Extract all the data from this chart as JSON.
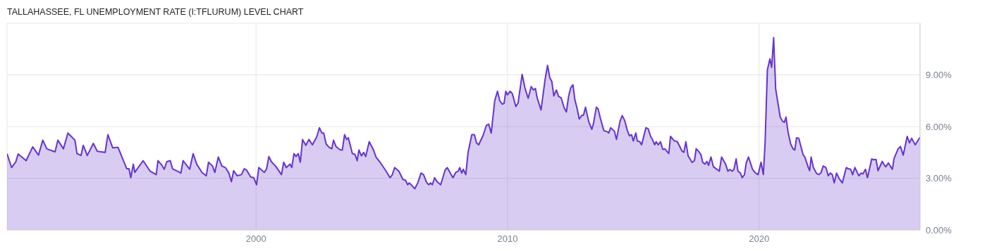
{
  "chart_data": {
    "type": "area",
    "title": "TALLAHASSEE, FL UNEMPLOYMENT RATE (I:TFLURUM) LEVEL CHART",
    "x": [
      1990.1,
      1990.28,
      1990.45,
      1990.54,
      1990.86,
      1991.12,
      1991.35,
      1991.52,
      1991.68,
      1992.01,
      1992.12,
      1992.34,
      1992.52,
      1992.8,
      1992.88,
      1993.04,
      1993.13,
      1993.29,
      1993.53,
      1993.69,
      1994.0,
      1994.11,
      1994.3,
      1994.51,
      1994.86,
      1994.95,
      1995.02,
      1995.12,
      1995.18,
      1995.51,
      1995.79,
      1996.03,
      1996.1,
      1996.26,
      1996.35,
      1996.45,
      1996.59,
      1996.68,
      1996.87,
      1997.01,
      1997.1,
      1997.24,
      1997.36,
      1997.5,
      1997.64,
      1997.85,
      1998.02,
      1998.11,
      1998.27,
      1998.36,
      1998.5,
      1998.64,
      1998.78,
      1998.92,
      1999.02,
      1999.11,
      1999.25,
      1999.42,
      1999.53,
      1999.62,
      1999.79,
      1999.91,
      2000.02,
      2000.11,
      2000.33,
      2000.42,
      2000.51,
      2000.61,
      2000.79,
      2001.01,
      2001.1,
      2001.2,
      2001.35,
      2001.42,
      2001.51,
      2001.59,
      2001.68,
      2001.76,
      2001.85,
      2001.98,
      2002.1,
      2002.24,
      2002.41,
      2002.52,
      2002.62,
      2002.69,
      2002.79,
      2002.9,
      2003.01,
      2003.08,
      2003.18,
      2003.35,
      2003.43,
      2003.52,
      2003.6,
      2003.67,
      2003.83,
      2003.93,
      2004.02,
      2004.09,
      2004.19,
      2004.28,
      2004.36,
      2004.5,
      2004.67,
      2004.77,
      2004.95,
      2005.14,
      2005.33,
      2005.42,
      2005.51,
      2005.68,
      2005.84,
      2005.94,
      2006.03,
      2006.09,
      2006.19,
      2006.31,
      2006.43,
      2006.56,
      2006.66,
      2006.78,
      2006.87,
      2006.94,
      2007.01,
      2007.1,
      2007.2,
      2007.34,
      2007.52,
      2007.6,
      2007.83,
      2007.94,
      2008.04,
      2008.1,
      2008.18,
      2008.24,
      2008.34,
      2008.43,
      2008.58,
      2008.68,
      2008.77,
      2008.85,
      2009.02,
      2009.16,
      2009.25,
      2009.35,
      2009.49,
      2009.6,
      2009.69,
      2009.79,
      2009.86,
      2009.93,
      2010.0,
      2010.1,
      2010.19,
      2010.33,
      2010.42,
      2010.58,
      2010.7,
      2010.82,
      2010.94,
      2011.03,
      2011.11,
      2011.17,
      2011.33,
      2011.5,
      2011.59,
      2011.68,
      2011.76,
      2011.84,
      2011.94,
      2012.03,
      2012.13,
      2012.25,
      2012.34,
      2012.43,
      2012.51,
      2012.6,
      2012.68,
      2012.76,
      2012.85,
      2012.95,
      2013.02,
      2013.1,
      2013.23,
      2013.35,
      2013.41,
      2013.53,
      2013.6,
      2013.69,
      2013.83,
      2013.97,
      2014.02,
      2014.1,
      2014.25,
      2014.33,
      2014.47,
      2014.56,
      2014.66,
      2014.77,
      2014.85,
      2014.93,
      2015.0,
      2015.1,
      2015.16,
      2015.26,
      2015.33,
      2015.5,
      2015.59,
      2015.69,
      2015.75,
      2015.85,
      2015.91,
      2015.99,
      2016.08,
      2016.17,
      2016.25,
      2016.41,
      2016.48,
      2016.62,
      2016.75,
      2016.94,
      2017.01,
      2017.09,
      2017.18,
      2017.34,
      2017.43,
      2017.5,
      2017.59,
      2017.69,
      2017.76,
      2017.85,
      2017.93,
      2017.99,
      2018.09,
      2018.18,
      2018.42,
      2018.51,
      2018.67,
      2018.76,
      2018.84,
      2018.93,
      2019.0,
      2019.09,
      2019.16,
      2019.26,
      2019.33,
      2019.42,
      2019.49,
      2019.58,
      2019.74,
      2019.86,
      2019.96,
      2020.08,
      2020.17,
      2020.24,
      2020.33,
      2020.43,
      2020.5,
      2020.58,
      2020.66,
      2020.84,
      2020.94,
      2021.01,
      2021.07,
      2021.16,
      2021.26,
      2021.35,
      2021.42,
      2021.49,
      2021.58,
      2021.75,
      2021.82,
      2021.96,
      2022.01,
      2022.07,
      2022.16,
      2022.29,
      2022.38,
      2022.47,
      2022.55,
      2022.66,
      2022.75,
      2022.83,
      2022.91,
      2022.99,
      2023.08,
      2023.19,
      2023.31,
      2023.47,
      2023.55,
      2023.64,
      2023.72,
      2023.81,
      2023.97,
      2024.06,
      2024.13,
      2024.23,
      2024.31,
      2024.48,
      2024.56,
      2024.65,
      2024.73,
      2024.9,
      2024.97,
      2025.04,
      2025.14,
      2025.3,
      2025.37,
      2025.53,
      2025.62,
      2025.73,
      2025.89,
      2025.98,
      2026.07,
      2026.12,
      2026.21,
      2026.4
    ],
    "series": [
      {
        "color": "#6633cc",
        "values": [
          4.43,
          3.62,
          3.96,
          4.41,
          4.02,
          4.82,
          4.34,
          5.21,
          4.71,
          4.53,
          5.21,
          4.71,
          5.62,
          5.21,
          4.43,
          4.32,
          4.91,
          4.32,
          5.02,
          4.56,
          4.5,
          5.53,
          4.77,
          4.8,
          3.55,
          3.55,
          3.03,
          3.82,
          3.34,
          4.02,
          3.41,
          3.21,
          4.02,
          3.75,
          3.52,
          3.96,
          4.02,
          3.55,
          3.41,
          3.3,
          4.02,
          3.75,
          3.52,
          4.43,
          3.82,
          3.34,
          3.14,
          3.93,
          3.71,
          3.34,
          4.23,
          3.71,
          3.62,
          3.3,
          2.8,
          3.44,
          3.14,
          3.21,
          3.55,
          3.48,
          3.07,
          3.03,
          2.62,
          3.62,
          3.34,
          3.55,
          4.26,
          3.96,
          3.68,
          3.21,
          3.93,
          3.62,
          3.82,
          3.62,
          4.43,
          4.26,
          4.43,
          3.93,
          5.25,
          4.91,
          5.25,
          4.94,
          5.39,
          5.93,
          5.62,
          5.62,
          4.98,
          4.8,
          4.71,
          5.21,
          4.84,
          4.64,
          4.64,
          5.53,
          5.25,
          5.35,
          4.43,
          4.39,
          4.02,
          4.64,
          4.3,
          4.5,
          4.26,
          5.12,
          4.64,
          4.23,
          3.89,
          3.48,
          3.03,
          3.21,
          3.62,
          3.41,
          2.93,
          2.89,
          2.62,
          2.73,
          2.59,
          2.39,
          2.73,
          3.3,
          3.21,
          2.76,
          2.62,
          2.73,
          2.62,
          3.03,
          2.8,
          2.62,
          3.48,
          3.62,
          3.03,
          3.34,
          3.41,
          3.62,
          3.3,
          3.52,
          3.21,
          4.5,
          5.53,
          5.53,
          5.05,
          4.94,
          5.46,
          6.07,
          6.14,
          5.62,
          7.5,
          8.05,
          7.5,
          7.3,
          7.34,
          8.05,
          7.84,
          8.05,
          7.91,
          7.16,
          7.37,
          9.03,
          8.19,
          7.64,
          8.32,
          8.12,
          8.21,
          7.71,
          6.96,
          8.8,
          9.55,
          8.83,
          8.62,
          7.78,
          8.12,
          7.75,
          7.67,
          7.09,
          6.85,
          7.78,
          8.25,
          8.43,
          7.53,
          7.09,
          6.44,
          6.64,
          6.66,
          7.12,
          6.28,
          5.84,
          6.14,
          7.12,
          7.03,
          6.48,
          5.76,
          5.7,
          5.62,
          5.93,
          5.73,
          5.25,
          6.3,
          6.64,
          6.34,
          5.73,
          5.46,
          5.53,
          5.16,
          5.62,
          5.16,
          5.12,
          4.94,
          5.93,
          5.87,
          5.43,
          5.28,
          4.94,
          5.12,
          4.94,
          5.12,
          4.67,
          4.71,
          4.43,
          5.43,
          5.18,
          5.12,
          4.57,
          4.5,
          5.12,
          4.3,
          3.92,
          4.02,
          4.71,
          4.57,
          4.37,
          3.92,
          3.82,
          3.98,
          3.75,
          4.23,
          3.68,
          3.41,
          4.23,
          3.82,
          3.41,
          3.51,
          3.41,
          3.51,
          4.12,
          3.41,
          3.3,
          3.03,
          3.21,
          3.89,
          4.23,
          3.52,
          3.3,
          3.21,
          3.93,
          3.21,
          5.05,
          9.28,
          9.93,
          9.44,
          11.16,
          8.19,
          6.55,
          6.3,
          6.25,
          6.55,
          5.62,
          4.98,
          4.71,
          4.64,
          5.35,
          5.32,
          4.37,
          4.23,
          3.62,
          3.44,
          4.23,
          3.62,
          3.27,
          3.21,
          3.34,
          3.71,
          3.62,
          3.14,
          3.3,
          3.21,
          2.73,
          3.3,
          2.97,
          2.73,
          3.62,
          3.55,
          3.52,
          3.21,
          3.62,
          3.14,
          3.3,
          3.25,
          3.52,
          3.03,
          4.12,
          4.07,
          4.09,
          3.44,
          3.98,
          3.79,
          3.66,
          3.89,
          3.52,
          4.16,
          4.71,
          4.84,
          4.34,
          5.43,
          5.05,
          5.32,
          5.18,
          4.94,
          5.39
        ]
      }
    ],
    "xlim": [
      1990.1,
      2026.4
    ],
    "xticks": [
      2000,
      2010,
      2020
    ],
    "ylim": [
      0,
      12
    ],
    "yticks": [
      {
        "value": 0,
        "label": "0.00%"
      },
      {
        "value": 3,
        "label": "3.00%"
      },
      {
        "value": 6,
        "label": "6.00%"
      },
      {
        "value": 9,
        "label": "9.00%"
      }
    ],
    "grid": true,
    "legend": false,
    "marker": "none",
    "line_style": "solid"
  }
}
